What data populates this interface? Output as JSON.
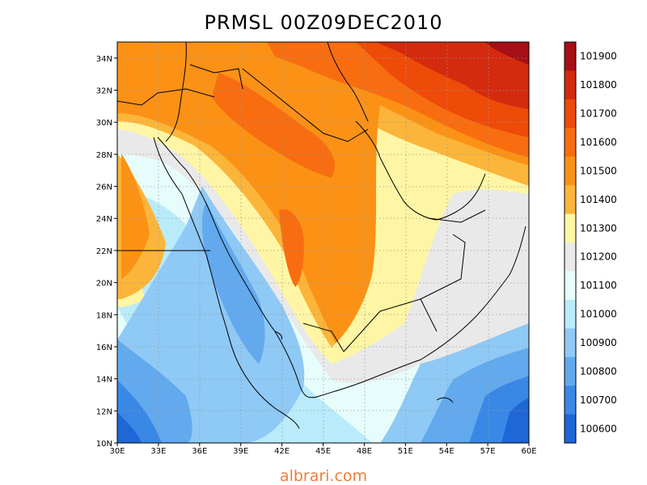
{
  "title": "PRMSL 00Z09DEC2010",
  "credit": "albrari.com",
  "map": {
    "lon_range": [
      30,
      60
    ],
    "lat_range": [
      10,
      35
    ],
    "lon_ticks": [
      "30E",
      "33E",
      "36E",
      "39E",
      "42E",
      "45E",
      "48E",
      "51E",
      "54E",
      "57E",
      "60E"
    ],
    "lat_ticks": [
      "10N",
      "12N",
      "14N",
      "16N",
      "18N",
      "20N",
      "22N",
      "24N",
      "26N",
      "28N",
      "30N",
      "32N",
      "34N"
    ],
    "grid": "dotted"
  },
  "colorbar": {
    "labels": [
      "101900",
      "101800",
      "101700",
      "101600",
      "101500",
      "101400",
      "101300",
      "101200",
      "101100",
      "101000",
      "100900",
      "100800",
      "100700",
      "100600"
    ],
    "colors": [
      "#a50f15",
      "#d42a0e",
      "#ee4a08",
      "#f86d10",
      "#fb9216",
      "#fbb53a",
      "#fef6a4",
      "#e9e9e9",
      "#e6fdfc",
      "#b9ebfb",
      "#8fc9f5",
      "#62a9ee",
      "#3988e6",
      "#1f66d6"
    ]
  }
}
